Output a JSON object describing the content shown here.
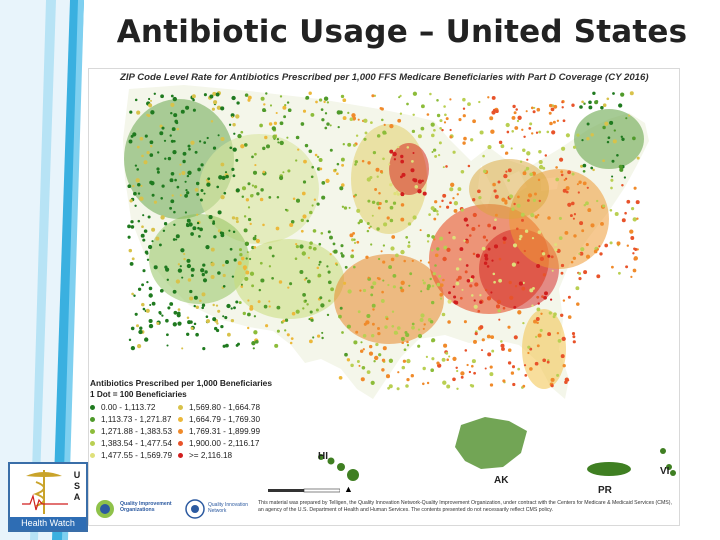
{
  "slide": {
    "title": "Antibiotic Usage – United States"
  },
  "map": {
    "heading": "ZIP Code Level Rate for Antibiotics Prescribed per 1,000 FFS Medicare Beneficiaries with Part D Coverage (CY 2016)",
    "territory_labels": {
      "hi": "HI",
      "ak": "AK",
      "pr": "PR",
      "vi": "VI"
    }
  },
  "legend": {
    "title": "Antibiotics Prescribed per 1,000 Beneficiaries",
    "subtitle": "1 Dot = 100 Beneficiaries",
    "items": [
      {
        "range": "0.00 - 1,113.72",
        "color": "#1f7a1f"
      },
      {
        "range": "1,569.80 - 1,664.78",
        "color": "#d8c24a"
      },
      {
        "range": "1,113.73 - 1,271.87",
        "color": "#4f9a2a"
      },
      {
        "range": "1,664.79 - 1,769.30",
        "color": "#ecb83a"
      },
      {
        "range": "1,271.88 - 1,383.53",
        "color": "#8cbc3a"
      },
      {
        "range": "1,769.31 - 1,899.99",
        "color": "#f08a2a"
      },
      {
        "range": "1,383.54 - 1,477.54",
        "color": "#b9cf52"
      },
      {
        "range": "1,900.00 - 2,116.17",
        "color": "#e8532a"
      },
      {
        "range": "1,477.55 - 1,569.79",
        "color": "#dfe07a"
      },
      {
        "range": ">= 2,116.18",
        "color": "#d11e1e"
      }
    ]
  },
  "footer": {
    "qio_text": "Quality Improvement Organizations",
    "cms_text": "Quality Innovation Network",
    "disclaimer": "This material was prepared by Telligen, the Quality Innovation Network-Quality Improvement Organization, under contract with the Centers for Medicare & Medicaid Services (CMS), an agency of the U.S. Department of Health and Human Services. The contents presented do not necessarily reflect CMS policy."
  },
  "logo": {
    "usa_letters": "U S A",
    "text": "Health Watch"
  }
}
